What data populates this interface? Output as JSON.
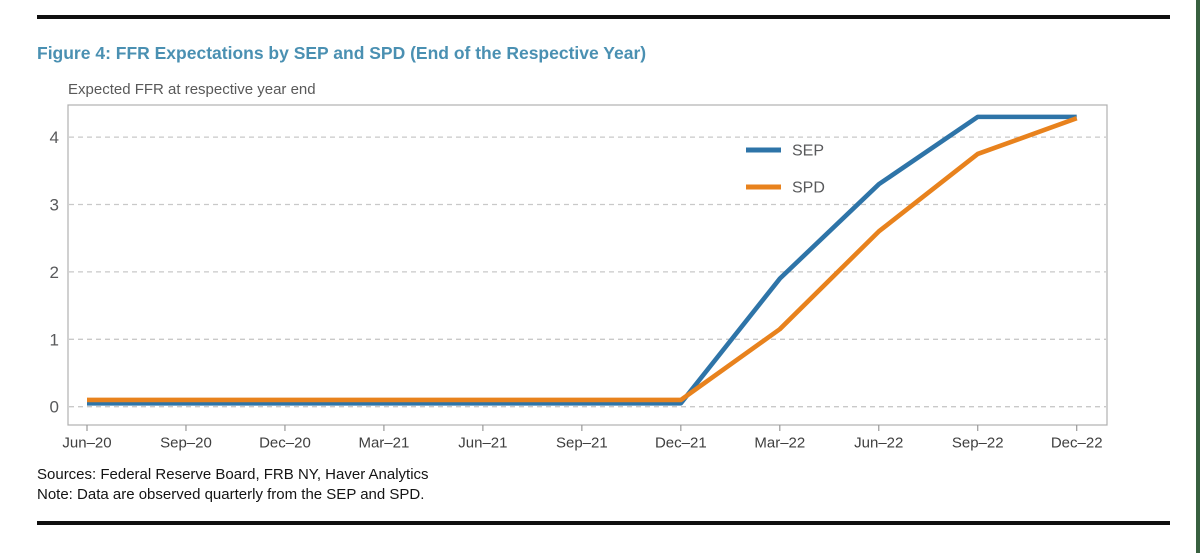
{
  "page": {
    "title": "Figure 4: FFR Expectations by SEP and SPD (End of the Respective Year)",
    "sources": "Sources: Federal Reserve Board, FRB NY, Haver Analytics",
    "note": "Note: Data are observed quarterly from the SEP and SPD."
  },
  "chart_data": {
    "type": "line",
    "title": "Expected FFR at respective year end",
    "categories": [
      "Jun–20",
      "Sep–20",
      "Dec–20",
      "Mar–21",
      "Jun–21",
      "Sep–21",
      "Dec–21",
      "Mar–22",
      "Jun–22",
      "Sep–22",
      "Dec–22"
    ],
    "series": [
      {
        "name": "SEP",
        "color": "#2E74A8",
        "values": [
          0.05,
          0.05,
          0.05,
          0.05,
          0.05,
          0.05,
          0.05,
          1.9,
          3.3,
          4.3,
          4.3
        ]
      },
      {
        "name": "SPD",
        "color": "#E8821D",
        "values": [
          0.1,
          0.1,
          0.1,
          0.1,
          0.1,
          0.1,
          0.1,
          1.15,
          2.6,
          3.75,
          4.28
        ]
      }
    ],
    "yticks": [
      0,
      1,
      2,
      3,
      4
    ],
    "ylim": [
      -0.27,
      4.48
    ],
    "grid": "horizontal-dashed",
    "legend_position": "inside-upper-right"
  }
}
